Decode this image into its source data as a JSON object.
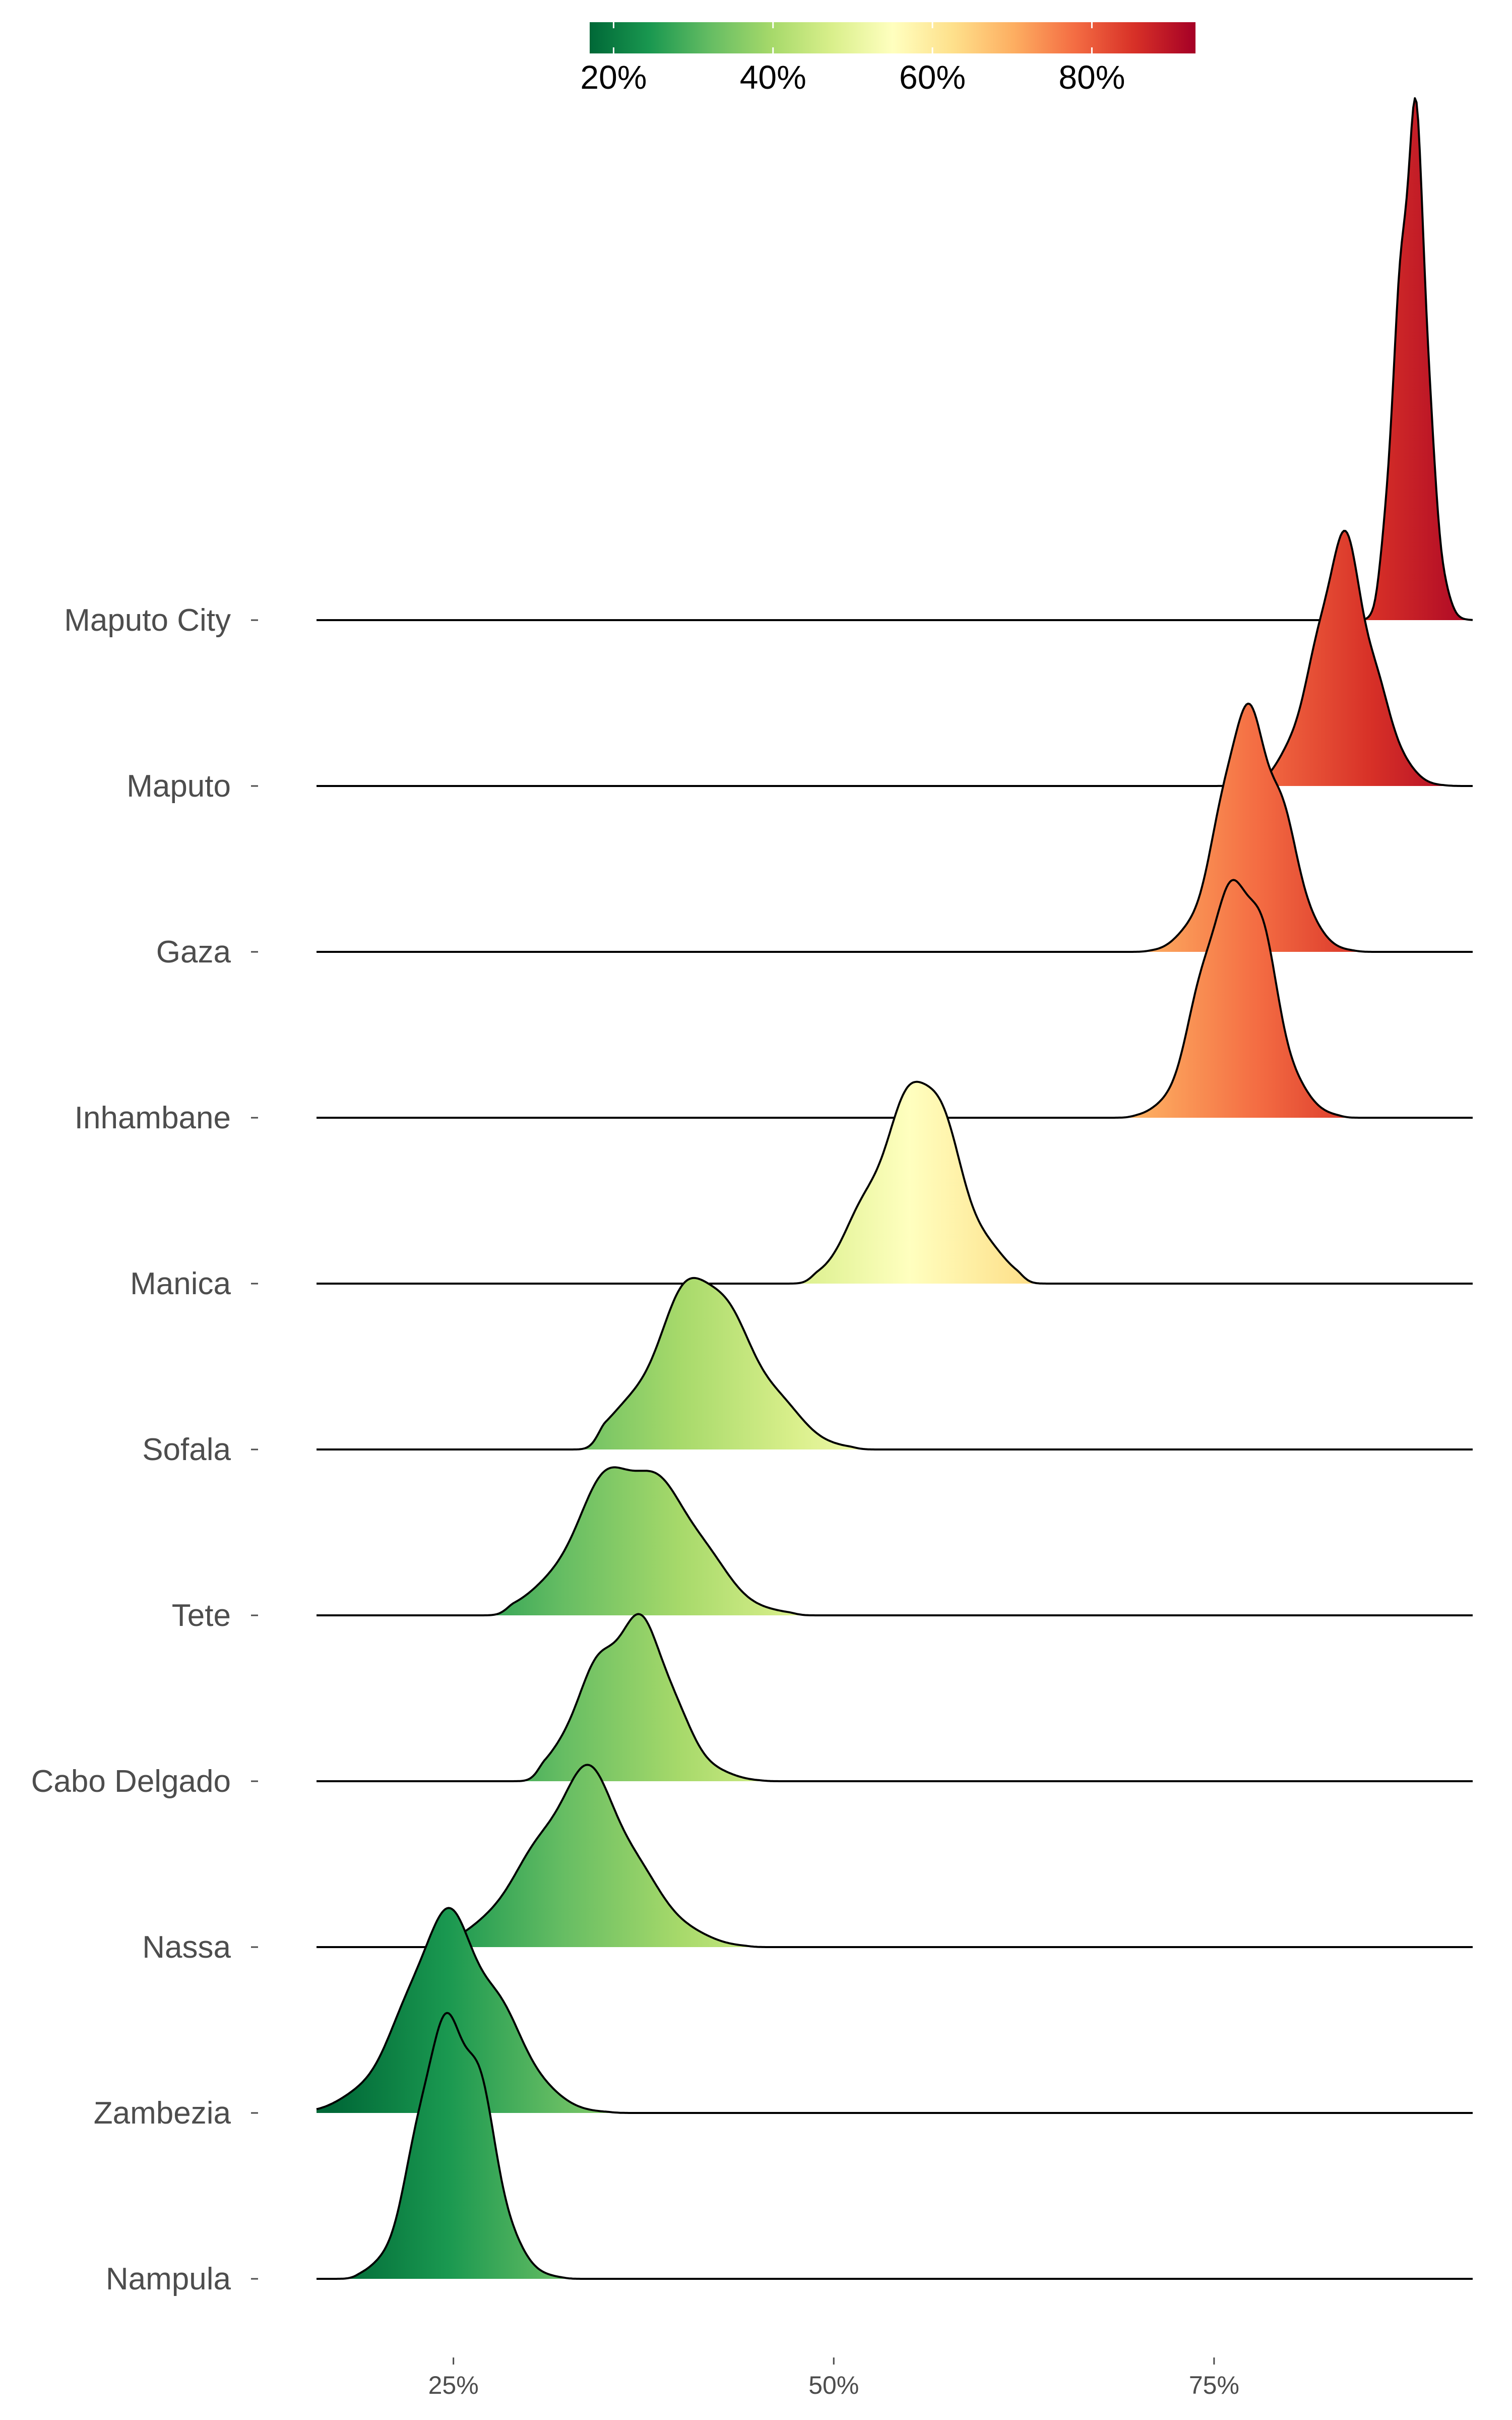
{
  "chart_data": {
    "type": "ridgeline",
    "x_axis": {
      "range": [
        16,
        92
      ],
      "ticks": [
        25,
        50,
        75
      ],
      "tick_labels": [
        "25%",
        "50%",
        "75%"
      ]
    },
    "y_axis": {
      "categories": [
        "Maputo City",
        "Maputo",
        "Gaza",
        "Inhambane",
        "Manica",
        "Sofala",
        "Tete",
        "Cabo Delgado",
        "Nassa",
        "Zambezia",
        "Nampula"
      ]
    },
    "colorbar": {
      "position": "top",
      "range": [
        17,
        93
      ],
      "ticks": [
        20,
        40,
        60,
        80
      ],
      "tick_labels": [
        "20%",
        "40%",
        "60%",
        "80%"
      ],
      "palette": "RdYlGn reversed",
      "colors": [
        "#006837",
        "#1a9850",
        "#66bd63",
        "#a6d96a",
        "#d9ef8b",
        "#ffffbf",
        "#fee08b",
        "#fdae61",
        "#f46d43",
        "#d73027",
        "#a50026"
      ]
    },
    "series": [
      {
        "name": "Maputo City",
        "peak": 88,
        "spread": 1.0,
        "relative_height": 3.0,
        "support": [
          86,
          92
        ]
      },
      {
        "name": "Maputo",
        "peak": 83.5,
        "spread": 2.0,
        "relative_height": 1.4,
        "support": [
          76,
          90
        ]
      },
      {
        "name": "Gaza",
        "peak": 77.5,
        "spread": 2.1,
        "relative_height": 1.45,
        "support": [
          71,
          84
        ]
      },
      {
        "name": "Inhambane",
        "peak": 76.5,
        "spread": 2.2,
        "relative_height": 1.5,
        "support": [
          70,
          83
        ]
      },
      {
        "name": "Manica",
        "peak": 55.5,
        "spread": 2.8,
        "relative_height": 1.2,
        "support": [
          49,
          62
        ]
      },
      {
        "name": "Sofala",
        "peak": 41.5,
        "spread": 3.4,
        "relative_height": 1.0,
        "support": [
          35,
          51
        ]
      },
      {
        "name": "Tete",
        "peak": 37,
        "spread": 3.6,
        "relative_height": 0.95,
        "support": [
          29,
          47
        ]
      },
      {
        "name": "Cabo Delgado",
        "peak": 36.5,
        "spread": 2.7,
        "relative_height": 1.0,
        "support": [
          31,
          45
        ]
      },
      {
        "name": "Nassa",
        "peak": 33.5,
        "spread": 3.5,
        "relative_height": 1.0,
        "support": [
          25,
          44
        ]
      },
      {
        "name": "Zambezia",
        "peak": 25,
        "spread": 3.2,
        "relative_height": 1.15,
        "support": [
          16,
          35
        ]
      },
      {
        "name": "Nampula",
        "peak": 25,
        "spread": 2.2,
        "relative_height": 1.65,
        "support": [
          19,
          32
        ]
      }
    ]
  }
}
